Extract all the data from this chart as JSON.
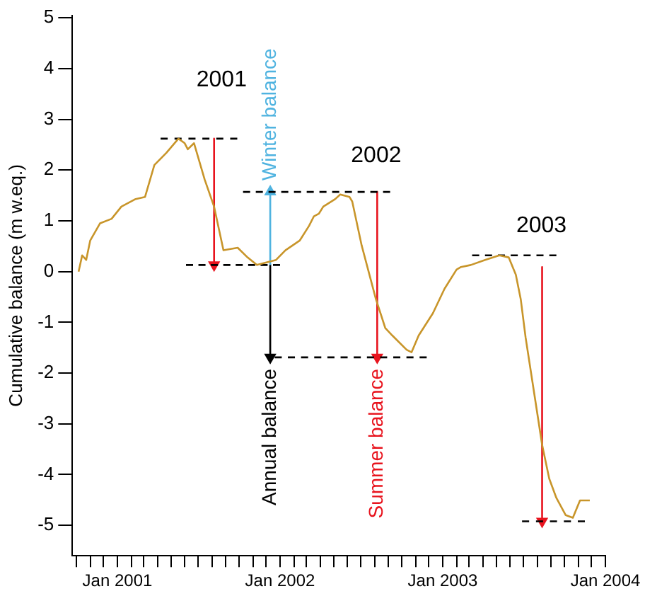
{
  "chart_data": {
    "type": "line",
    "ylabel": "Cumulative balance (m w.eq.)",
    "xlim": [
      "2000-09-22",
      "2004-01-01"
    ],
    "ylim": [
      -5.6,
      5.05
    ],
    "yticks": [
      -5,
      -4,
      -3,
      -2,
      -1,
      0,
      1,
      2,
      3,
      4,
      5
    ],
    "xticks": [
      {
        "value": "2000-10-01",
        "label": null
      },
      {
        "value": "2000-11-01",
        "label": null
      },
      {
        "value": "2000-12-01",
        "label": null
      },
      {
        "value": "2001-01-01",
        "label": "Jan 2001"
      },
      {
        "value": "2001-02-01",
        "label": null
      },
      {
        "value": "2001-03-01",
        "label": null
      },
      {
        "value": "2001-04-01",
        "label": null
      },
      {
        "value": "2001-05-01",
        "label": null
      },
      {
        "value": "2001-06-01",
        "label": null
      },
      {
        "value": "2001-07-01",
        "label": null
      },
      {
        "value": "2001-08-01",
        "label": null
      },
      {
        "value": "2001-09-01",
        "label": null
      },
      {
        "value": "2001-10-01",
        "label": null
      },
      {
        "value": "2001-11-01",
        "label": null
      },
      {
        "value": "2001-12-01",
        "label": null
      },
      {
        "value": "2002-01-01",
        "label": "Jan 2002"
      },
      {
        "value": "2002-02-01",
        "label": null
      },
      {
        "value": "2002-03-01",
        "label": null
      },
      {
        "value": "2002-04-01",
        "label": null
      },
      {
        "value": "2002-05-01",
        "label": null
      },
      {
        "value": "2002-06-01",
        "label": null
      },
      {
        "value": "2002-07-01",
        "label": null
      },
      {
        "value": "2002-08-01",
        "label": null
      },
      {
        "value": "2002-09-01",
        "label": null
      },
      {
        "value": "2002-10-01",
        "label": null
      },
      {
        "value": "2002-11-01",
        "label": null
      },
      {
        "value": "2002-12-01",
        "label": null
      },
      {
        "value": "2003-01-01",
        "label": "Jan 2003"
      },
      {
        "value": "2003-02-01",
        "label": null
      },
      {
        "value": "2003-03-01",
        "label": null
      },
      {
        "value": "2003-04-01",
        "label": null
      },
      {
        "value": "2003-05-01",
        "label": null
      },
      {
        "value": "2003-06-01",
        "label": null
      },
      {
        "value": "2003-07-01",
        "label": null
      },
      {
        "value": "2003-08-01",
        "label": null
      },
      {
        "value": "2003-09-01",
        "label": null
      },
      {
        "value": "2003-10-01",
        "label": null
      },
      {
        "value": "2003-11-01",
        "label": null
      },
      {
        "value": "2003-12-01",
        "label": null
      },
      {
        "value": "2004-01-01",
        "label": "Jan 2004"
      }
    ],
    "grid": false,
    "legend": false,
    "marker": "none",
    "line_style": "solid",
    "series": [
      {
        "type": "line",
        "color": "#c8952a",
        "x": [
          "2000-10-06",
          "2000-10-14",
          "2000-10-23",
          "2000-11-01",
          "2000-11-23",
          "2000-12-19",
          "2001-01-10",
          "2001-02-11",
          "2001-03-04",
          "2001-03-25",
          "2001-04-21",
          "2001-05-18",
          "2001-06-01",
          "2001-06-08",
          "2001-06-22",
          "2001-07-16",
          "2001-08-06",
          "2001-08-27",
          "2001-09-28",
          "2001-10-20",
          "2001-11-10",
          "2001-12-23",
          "2002-01-13",
          "2002-02-14",
          "2002-03-07",
          "2002-03-18",
          "2002-03-29",
          "2002-04-08",
          "2002-05-05",
          "2002-05-16",
          "2002-06-06",
          "2002-06-12",
          "2002-07-03",
          "2002-08-04",
          "2002-08-25",
          "2002-09-10",
          "2002-10-12",
          "2002-10-23",
          "2002-11-08",
          "2002-12-10",
          "2003-01-05",
          "2003-02-01",
          "2003-02-11",
          "2003-03-05",
          "2003-04-06",
          "2003-05-08",
          "2003-05-29",
          "2003-06-14",
          "2003-06-25",
          "2003-07-06",
          "2003-08-12",
          "2003-08-28",
          "2003-09-13",
          "2003-10-04",
          "2003-10-20",
          "2003-11-05",
          "2003-11-27"
        ],
        "values": [
          0,
          0.32,
          0.23,
          0.61,
          0.95,
          1.04,
          1.28,
          1.43,
          1.47,
          2.1,
          2.34,
          2.62,
          2.53,
          2.41,
          2.53,
          1.81,
          1.28,
          0.42,
          0.47,
          0.28,
          0.13,
          0.23,
          0.42,
          0.61,
          0.9,
          1.09,
          1.14,
          1.28,
          1.43,
          1.52,
          1.47,
          1.38,
          0.52,
          -0.54,
          -1.11,
          -1.26,
          -1.54,
          -1.59,
          -1.26,
          -0.82,
          -0.34,
          0.04,
          0.09,
          0.13,
          0.23,
          0.32,
          0.28,
          -0.06,
          -0.54,
          -1.3,
          -3.41,
          -4.08,
          -4.46,
          -4.8,
          -4.85,
          -4.51,
          -4.51
        ]
      },
      {
        "type": "line",
        "color": "#000000",
        "line_style": "dashed",
        "x": [
          "2001-04-08",
          "2001-09-27"
        ],
        "values": [
          2.62,
          2.62
        ]
      },
      {
        "type": "line",
        "color": "#000000",
        "line_style": "dashed",
        "x": [
          "2001-06-04",
          "2002-01-01"
        ],
        "values": [
          0.13,
          0.13
        ]
      },
      {
        "type": "line",
        "color": "#000000",
        "line_style": "dashed",
        "x": [
          "2001-10-10",
          "2002-09-05"
        ],
        "values": [
          1.57,
          1.57
        ]
      },
      {
        "type": "line",
        "color": "#000000",
        "line_style": "dashed",
        "x": [
          "2001-12-20",
          "2002-11-26"
        ],
        "values": [
          -1.69,
          -1.69
        ]
      },
      {
        "type": "line",
        "color": "#000000",
        "line_style": "dashed",
        "x": [
          "2003-03-08",
          "2003-09-13"
        ],
        "values": [
          0.32,
          0.32
        ]
      },
      {
        "type": "line",
        "color": "#000000",
        "line_style": "dashed",
        "x": [
          "2003-06-28",
          "2003-11-16"
        ],
        "values": [
          -4.92,
          -4.92
        ]
      },
      {
        "type": "line",
        "color": "#e8141e",
        "marker": "triangle",
        "x": [
          "2001-08-06",
          "2001-08-06"
        ],
        "values": [
          2.62,
          0.13
        ]
      },
      {
        "type": "line",
        "color": "#4fb3e0",
        "marker": "triangle",
        "name": "Winter balance",
        "x": [
          "2001-12-10",
          "2001-12-10"
        ],
        "values": [
          0.13,
          1.57
        ]
      },
      {
        "type": "line",
        "color": "#000000",
        "marker": "triangle",
        "name": "Annual balance",
        "x": [
          "2001-12-10",
          "2001-12-10"
        ],
        "values": [
          0.13,
          -1.69
        ]
      },
      {
        "type": "line",
        "color": "#e8141e",
        "marker": "triangle",
        "name": "Summer balance",
        "x": [
          "2002-08-07",
          "2002-08-07"
        ],
        "values": [
          1.57,
          -1.69
        ]
      },
      {
        "type": "line",
        "color": "#e8141e",
        "marker": "triangle",
        "x": [
          "2003-08-12",
          "2003-08-12"
        ],
        "values": [
          0.09,
          -4.92
        ]
      }
    ],
    "annotations": [
      "2001",
      "2002",
      "2003"
    ]
  }
}
